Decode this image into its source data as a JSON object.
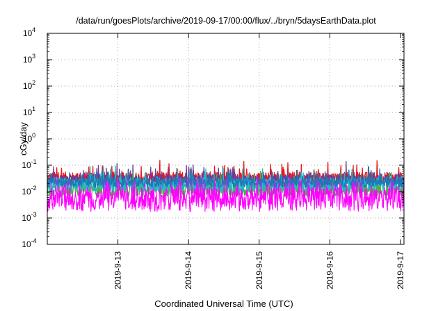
{
  "chart_data": {
    "type": "line",
    "title": "/data/run/goesPlots/archive/2019-09-17/00:00/flux/../bryn/5daysEarthData.plot",
    "xlabel": "Coordinated Universal Time (UTC)",
    "ylabel": "cGy/day",
    "yscale": "log",
    "ylim": [
      0.0001,
      10000
    ],
    "xlim": [
      0,
      5.05
    ],
    "grid": true,
    "y_ticks": [
      {
        "value": 0.0001,
        "base": "10",
        "exp": "-4"
      },
      {
        "value": 0.001,
        "base": "10",
        "exp": "-3"
      },
      {
        "value": 0.01,
        "base": "10",
        "exp": "-2"
      },
      {
        "value": 0.1,
        "base": "10",
        "exp": "-1"
      },
      {
        "value": 1,
        "base": "10",
        "exp": "0"
      },
      {
        "value": 10,
        "base": "10",
        "exp": "1"
      },
      {
        "value": 100,
        "base": "10",
        "exp": "2"
      },
      {
        "value": 1000,
        "base": "10",
        "exp": "3"
      },
      {
        "value": 10000,
        "base": "10",
        "exp": "4"
      }
    ],
    "x_ticks": [
      {
        "value": 1,
        "label": "2019-9-13"
      },
      {
        "value": 2,
        "label": "2019-9-14"
      },
      {
        "value": 3,
        "label": "2019-9-15"
      },
      {
        "value": 4,
        "label": "2019-9-16"
      },
      {
        "value": 5,
        "label": "2019-9-17"
      }
    ],
    "series": [
      {
        "color": "#e41a1c",
        "base": 0.033,
        "spread": 0.45,
        "spike": 0.1
      },
      {
        "color": "#6a3d9a",
        "base": 0.028,
        "spread": 0.4,
        "spike": 0.08
      },
      {
        "color": "#4daf4a",
        "base": 0.012,
        "spread": 0.5,
        "spike": 0.12
      },
      {
        "color": "#17becf",
        "base": 0.018,
        "spread": 0.55,
        "spike": 0.1
      },
      {
        "color": "#1f77b4",
        "base": 0.022,
        "spread": 0.35,
        "spike": 0.06
      },
      {
        "color": "#ff00ff",
        "base": 0.005,
        "spread": 0.9,
        "spike": 0.35
      }
    ]
  }
}
